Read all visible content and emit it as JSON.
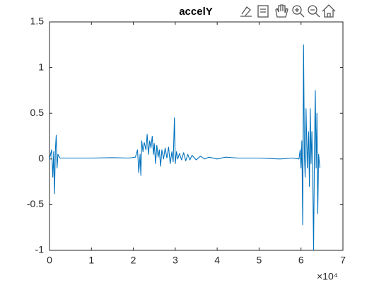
{
  "chart_data": {
    "type": "line",
    "title": "accelY",
    "x_exponent": "×10⁴",
    "xlim": [
      0,
      70000
    ],
    "xticks": [
      0,
      {
        "value": 10000,
        "label": "1"
      },
      {
        "value": 20000,
        "label": "2"
      },
      {
        "value": 30000,
        "label": "3"
      },
      {
        "value": 40000,
        "label": "4"
      },
      {
        "value": 50000,
        "label": "5"
      },
      {
        "value": 60000,
        "label": "6"
      },
      {
        "value": 70000,
        "label": "7"
      }
    ],
    "ylim": [
      -1,
      1.5
    ],
    "yticks": [
      -1,
      -0.5,
      0,
      0.5,
      1,
      1.5
    ],
    "grid": false,
    "series": [
      {
        "color": "#0072bd",
        "x": [
          0,
          500,
          800,
          1000,
          1200,
          1400,
          1600,
          1800,
          2000,
          2500,
          5000,
          10000,
          15000,
          19000,
          20500,
          21000,
          21300,
          21600,
          21800,
          22000,
          22300,
          22600,
          23000,
          23300,
          23600,
          23900,
          24200,
          24500,
          24800,
          25000,
          25300,
          25600,
          25900,
          26200,
          26500,
          26800,
          27200,
          27600,
          28000,
          28400,
          28800,
          29200,
          29500,
          29800,
          30000,
          30300,
          30600,
          31000,
          31500,
          32000,
          32500,
          33000,
          33500,
          34000,
          35000,
          36000,
          37000,
          38000,
          40000,
          42000,
          45000,
          50000,
          55000,
          58000,
          59500,
          59800,
          60000,
          60200,
          60400,
          60600,
          60800,
          61000,
          61200,
          61500,
          61800,
          62000,
          62200,
          62400,
          62600,
          62800,
          63000,
          63200,
          63400,
          63600,
          63800,
          64000,
          64200,
          64500
        ],
        "values": [
          0,
          0.1,
          -0.2,
          0.08,
          -0.38,
          0.1,
          0.26,
          -0.1,
          0.05,
          0.01,
          0.01,
          0.01,
          0.015,
          0.01,
          0.02,
          0.1,
          -0.15,
          0.05,
          -0.18,
          0.2,
          0.08,
          0.18,
          0.1,
          0.27,
          0.05,
          0.2,
          0.12,
          0.25,
          0.05,
          0.17,
          -0.05,
          0.15,
          0.02,
          0.1,
          -0.08,
          0.1,
          0.0,
          0.12,
          0.01,
          0.13,
          -0.05,
          0.08,
          -0.03,
          0.45,
          -0.05,
          0.08,
          0.0,
          0.06,
          -0.01,
          0.07,
          -0.02,
          0.05,
          -0.01,
          0.04,
          -0.01,
          0.03,
          0.0,
          0.02,
          0.0,
          0.02,
          0.01,
          0.01,
          0.0,
          0.01,
          0.0,
          0.1,
          -0.1,
          0.2,
          -0.72,
          1.25,
          0.05,
          -0.2,
          0.55,
          -0.1,
          0.3,
          -0.3,
          0.55,
          -0.05,
          0.3,
          -0.2,
          -1.0,
          0.1,
          0.75,
          -0.1,
          0.5,
          -0.6,
          0.05,
          -0.1
        ]
      }
    ]
  }
}
